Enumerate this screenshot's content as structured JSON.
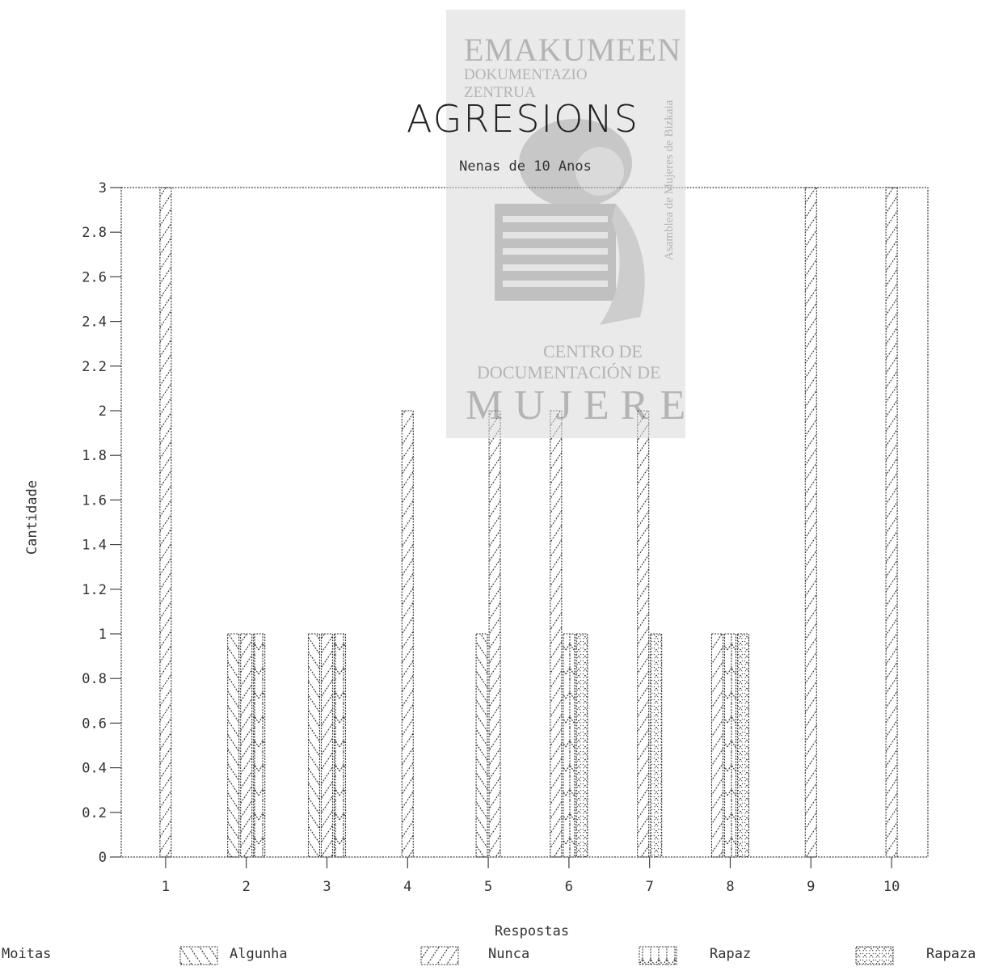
{
  "watermark": {
    "line1": "EMAKUMEEN",
    "line2": "DOKUMENTAZIO",
    "line3": "ZENTRUA",
    "line4": "CENTRO DE",
    "line5": "DOCUMENTACIÓN DE",
    "line6": "MUJERES",
    "side": "Asamblea de Mujeres de Bizkaia"
  },
  "chart_data": {
    "type": "bar",
    "title": "AGRESIONS",
    "subtitle": "Nenas de 10 Anos",
    "xlabel": "Respostas",
    "ylabel": "Cantidade",
    "categories": [
      "1",
      "2",
      "3",
      "4",
      "5",
      "6",
      "7",
      "8",
      "9",
      "10"
    ],
    "yticks": [
      "0",
      "0.2",
      "0.4",
      "0.6",
      "0.8",
      "1",
      "1.2",
      "1.4",
      "1.6",
      "1.8",
      "2",
      "2.2",
      "2.4",
      "2.6",
      "2.8",
      "3"
    ],
    "ylim": [
      0,
      3
    ],
    "grid": false,
    "legend_position": "bottom",
    "series": [
      {
        "name": "Moitas",
        "values": [
          0,
          0,
          0,
          0,
          0,
          0,
          0,
          0,
          0,
          0
        ],
        "pattern": "none"
      },
      {
        "name": "Algunha",
        "values": [
          0,
          1,
          1,
          0,
          1,
          0,
          0,
          0,
          0,
          0
        ],
        "pattern": "backslash"
      },
      {
        "name": "Nunca",
        "values": [
          3,
          1,
          1,
          2,
          2,
          2,
          2,
          1,
          3,
          3
        ],
        "pattern": "slash"
      },
      {
        "name": "Rapaz",
        "values": [
          0,
          1,
          1,
          0,
          0,
          1,
          0,
          1,
          0,
          0
        ],
        "pattern": "arrow"
      },
      {
        "name": "Rapaza",
        "values": [
          0,
          0,
          0,
          0,
          0,
          1,
          1,
          1,
          0,
          0
        ],
        "pattern": "dots"
      }
    ]
  },
  "colors": {
    "ink": "#333333",
    "frame": "#444444",
    "watermark": "#d9d9d9"
  }
}
